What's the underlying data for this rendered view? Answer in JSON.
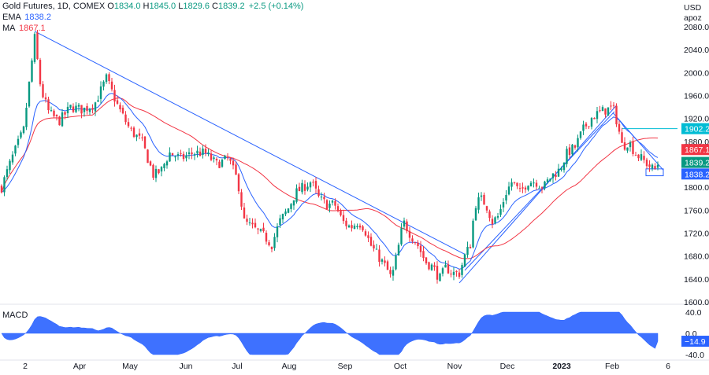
{
  "header": {
    "symbol": "Gold Futures, 1D, COMEX",
    "ohlc": [
      {
        "label": "O",
        "value": "1834.0"
      },
      {
        "label": "H",
        "value": "1845.0"
      },
      {
        "label": "L",
        "value": "1829.6"
      },
      {
        "label": "C",
        "value": "1839.2"
      }
    ],
    "change": "+2.5 (+0.14%)",
    "ohlc_color": "#089981"
  },
  "indicators": [
    {
      "name": "EMA",
      "value": "1838.2",
      "color": "#2962ff"
    },
    {
      "name": "MA",
      "value": "1867.1",
      "color": "#f23645"
    }
  ],
  "price_axis": {
    "currency": "USD",
    "unit": "apoz",
    "ticks": [
      "2080.0",
      "2040.0",
      "2000.0",
      "1960.0",
      "1920.0",
      "1880.0",
      "1840.0",
      "1800.0",
      "1760.0",
      "1720.0",
      "1680.0",
      "1640.0",
      "1600.0"
    ],
    "badges": [
      {
        "value": "1902.2",
        "color": "#00bcd4"
      },
      {
        "value": "1867.1",
        "color": "#f23645"
      },
      {
        "value": "1839.2",
        "color": "#089981"
      },
      {
        "value": "1838.2",
        "color": "#2962ff"
      }
    ]
  },
  "time_axis": {
    "labels": [
      "2",
      "Apr",
      "May",
      "Jun",
      "Jul",
      "Aug",
      "Sep",
      "Oct",
      "Nov",
      "Dec",
      "2023",
      "Feb",
      "6"
    ]
  },
  "macd": {
    "title": "MACD",
    "ticks": [
      "40.0",
      "0.0",
      "-40.0"
    ],
    "badge": "−14.9",
    "color": "#2962ff"
  },
  "chart_data": {
    "type": "candlestick",
    "y_range": [
      1600,
      2080
    ],
    "up_color": "#089981",
    "down_color": "#f23645",
    "ema_color": "#2962ff",
    "ma_color": "#f23645",
    "trendline_color": "#2962ff",
    "macd_range": [
      -40,
      40
    ]
  }
}
